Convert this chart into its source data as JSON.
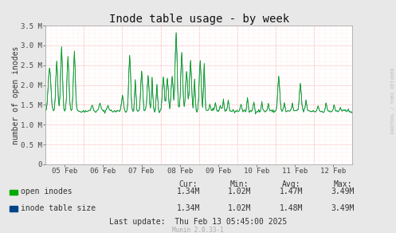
{
  "title": "Inode table usage - by week",
  "ylabel": "number of open inodes",
  "background_color": "#e8e8e8",
  "plot_bg_color": "#ffffff",
  "grid_color_major": "#ff9999",
  "grid_color_minor": "#ffcccc",
  "line_color_open": "#00aa00",
  "line_color_table": "#006688",
  "ylim": [
    0,
    3500000
  ],
  "yticks": [
    0,
    500000,
    1000000,
    1500000,
    2000000,
    2500000,
    3000000,
    3500000
  ],
  "ytick_labels": [
    "0",
    "0.5 M",
    "1.0 M",
    "1.5 M",
    "2.0 M",
    "2.5 M",
    "3.0 M",
    "3.5 M"
  ],
  "xtick_labels": [
    "05 Feb",
    "06 Feb",
    "07 Feb",
    "08 Feb",
    "09 Feb",
    "10 Feb",
    "11 Feb",
    "12 Feb"
  ],
  "legend": [
    {
      "label": "open inodes",
      "color": "#00aa00"
    },
    {
      "label": "inode table size",
      "color": "#004488"
    }
  ],
  "stats_header": [
    "Cur:",
    "Min:",
    "Avg:",
    "Max:"
  ],
  "stats_open": [
    "1.34M",
    "1.02M",
    "1.47M",
    "3.49M"
  ],
  "stats_table": [
    "1.34M",
    "1.02M",
    "1.48M",
    "3.49M"
  ],
  "last_update": "Last update:  Thu Feb 13 05:45:00 2025",
  "munin_version": "Munin 2.0.33-1",
  "rrdtool_label": "RRDTOOL / TOBI OETIKER",
  "title_fontsize": 10,
  "axis_fontsize": 7,
  "tick_fontsize": 6.5,
  "legend_fontsize": 7,
  "stats_fontsize": 7
}
